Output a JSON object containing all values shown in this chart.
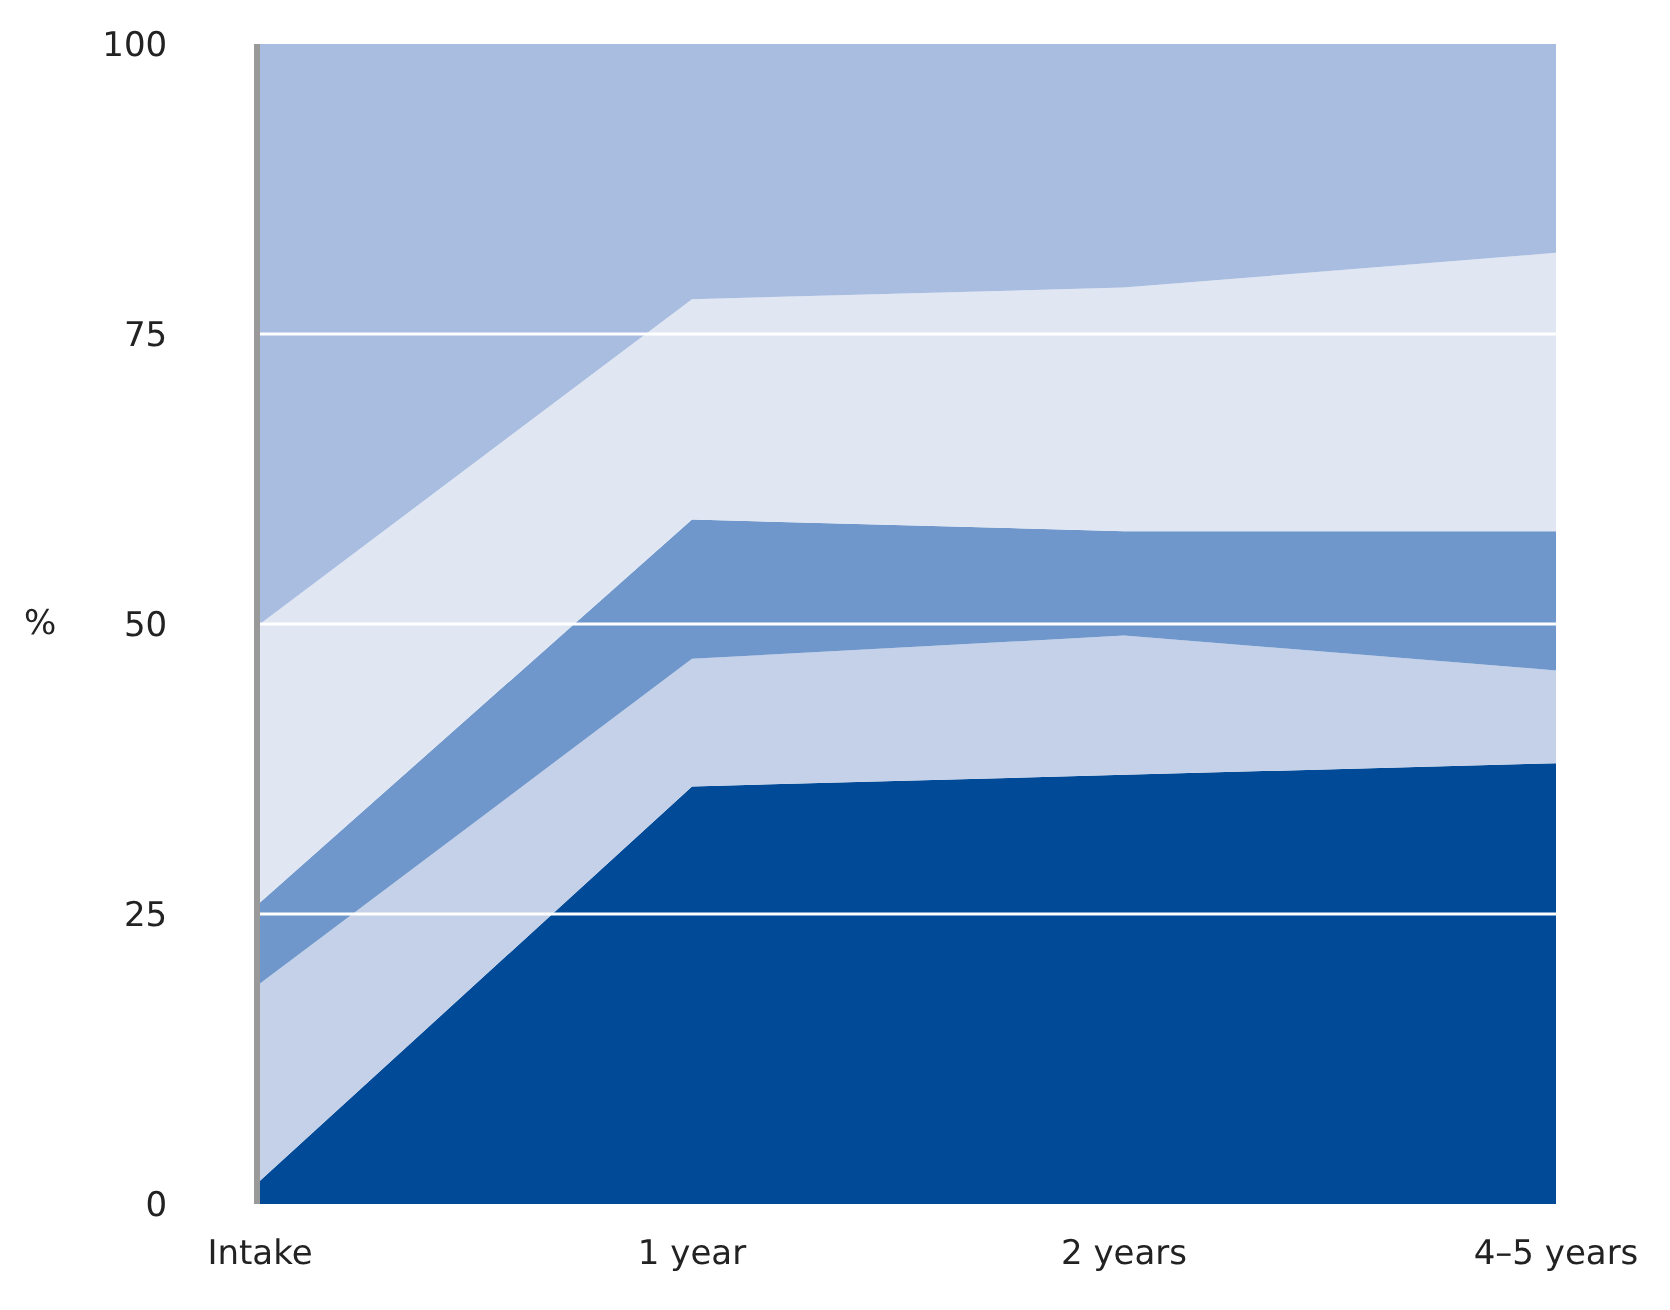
{
  "chart_data": {
    "type": "area",
    "stacked": true,
    "ylabel": "%",
    "categories": [
      "Intake",
      "1 year",
      "2 years",
      "4–5 years"
    ],
    "series": [
      {
        "color": "#004a98",
        "values": [
          2,
          36,
          37,
          38
        ]
      },
      {
        "color": "#c4d1e9",
        "values": [
          17,
          11,
          12,
          8
        ]
      },
      {
        "color": "#6f97cb",
        "values": [
          7,
          12,
          9,
          12
        ]
      },
      {
        "color": "#e0e7f3",
        "values": [
          24,
          19,
          21,
          24
        ]
      },
      {
        "color": "#a9bde0",
        "values": [
          50,
          22,
          21,
          18
        ]
      }
    ],
    "ylim": [
      0,
      100
    ],
    "yticks": [
      0,
      25,
      50,
      75,
      100
    ],
    "grid": "y"
  }
}
